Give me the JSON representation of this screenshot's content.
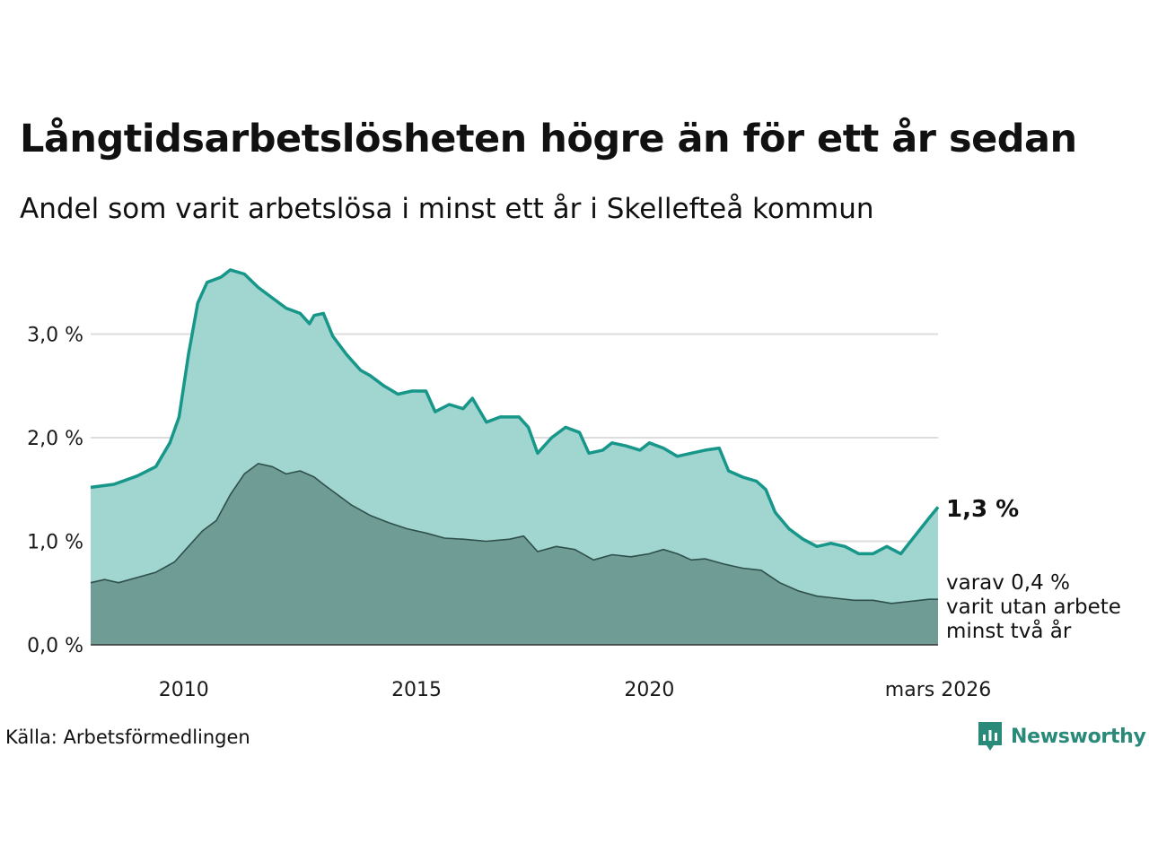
{
  "header": {
    "title": "Långtidsarbetslösheten högre än för ett år sedan",
    "subtitle": "Andel som varit arbetslösa i minst ett år i Skellefteå kommun"
  },
  "footer": {
    "source": "Källa: Arbetsförmedlingen",
    "brand": "Newsworthy"
  },
  "colors": {
    "total_line": "#17968a",
    "total_fill": "#a1d5cf",
    "long_fill": "#6f9d96",
    "long_line": "#2f4f4a",
    "grid": "#dddddd",
    "brand": "#2a8a79"
  },
  "chart_data": {
    "type": "area",
    "title": "Långtidsarbetslösheten högre än för ett år sedan",
    "subtitle": "Andel som varit arbetslösa i minst ett år i Skellefteå kommun",
    "ylim": [
      0,
      3.8
    ],
    "yticks": [
      0,
      1,
      2,
      3
    ],
    "ytick_labels": [
      "0,0 %",
      "1,0 %",
      "2,0 %",
      "3,0 %"
    ],
    "xlim": [
      2008.0,
      2026.2
    ],
    "xticks": [
      2010,
      2015,
      2020,
      2026.2
    ],
    "xtick_labels": [
      "2010",
      "2015",
      "2020",
      "mars 2026"
    ],
    "grid": true,
    "end_label_total": "1,3 %",
    "end_label_long": [
      "varav 0,4 %",
      "varit utan arbete",
      "minst två år"
    ],
    "series": [
      {
        "name": "Minst ett år",
        "points": [
          [
            2008.0,
            1.52
          ],
          [
            2008.5,
            1.55
          ],
          [
            2009.0,
            1.63
          ],
          [
            2009.4,
            1.72
          ],
          [
            2009.7,
            1.95
          ],
          [
            2009.9,
            2.2
          ],
          [
            2010.1,
            2.8
          ],
          [
            2010.3,
            3.3
          ],
          [
            2010.5,
            3.5
          ],
          [
            2010.8,
            3.55
          ],
          [
            2011.0,
            3.62
          ],
          [
            2011.3,
            3.58
          ],
          [
            2011.6,
            3.45
          ],
          [
            2011.9,
            3.35
          ],
          [
            2012.2,
            3.25
          ],
          [
            2012.5,
            3.2
          ],
          [
            2012.7,
            3.1
          ],
          [
            2012.8,
            3.18
          ],
          [
            2013.0,
            3.2
          ],
          [
            2013.2,
            2.98
          ],
          [
            2013.5,
            2.8
          ],
          [
            2013.8,
            2.65
          ],
          [
            2014.0,
            2.6
          ],
          [
            2014.3,
            2.5
          ],
          [
            2014.6,
            2.42
          ],
          [
            2014.9,
            2.45
          ],
          [
            2015.2,
            2.45
          ],
          [
            2015.4,
            2.25
          ],
          [
            2015.7,
            2.32
          ],
          [
            2016.0,
            2.28
          ],
          [
            2016.2,
            2.38
          ],
          [
            2016.5,
            2.15
          ],
          [
            2016.8,
            2.2
          ],
          [
            2017.2,
            2.2
          ],
          [
            2017.4,
            2.1
          ],
          [
            2017.6,
            1.85
          ],
          [
            2017.9,
            2.0
          ],
          [
            2018.2,
            2.1
          ],
          [
            2018.5,
            2.05
          ],
          [
            2018.7,
            1.85
          ],
          [
            2019.0,
            1.88
          ],
          [
            2019.2,
            1.95
          ],
          [
            2019.5,
            1.92
          ],
          [
            2019.8,
            1.88
          ],
          [
            2020.0,
            1.95
          ],
          [
            2020.3,
            1.9
          ],
          [
            2020.6,
            1.82
          ],
          [
            2020.9,
            1.85
          ],
          [
            2021.2,
            1.88
          ],
          [
            2021.5,
            1.9
          ],
          [
            2021.7,
            1.68
          ],
          [
            2022.0,
            1.62
          ],
          [
            2022.3,
            1.58
          ],
          [
            2022.5,
            1.5
          ],
          [
            2022.7,
            1.28
          ],
          [
            2023.0,
            1.12
          ],
          [
            2023.3,
            1.02
          ],
          [
            2023.6,
            0.95
          ],
          [
            2023.9,
            0.98
          ],
          [
            2024.2,
            0.95
          ],
          [
            2024.5,
            0.88
          ],
          [
            2024.8,
            0.88
          ],
          [
            2025.1,
            0.95
          ],
          [
            2025.4,
            0.88
          ],
          [
            2025.7,
            1.05
          ],
          [
            2026.0,
            1.22
          ],
          [
            2026.2,
            1.33
          ]
        ]
      },
      {
        "name": "Minst två år",
        "points": [
          [
            2008.0,
            0.6
          ],
          [
            2008.3,
            0.63
          ],
          [
            2008.6,
            0.6
          ],
          [
            2009.0,
            0.65
          ],
          [
            2009.4,
            0.7
          ],
          [
            2009.8,
            0.8
          ],
          [
            2010.1,
            0.95
          ],
          [
            2010.4,
            1.1
          ],
          [
            2010.7,
            1.2
          ],
          [
            2011.0,
            1.45
          ],
          [
            2011.3,
            1.65
          ],
          [
            2011.6,
            1.75
          ],
          [
            2011.9,
            1.72
          ],
          [
            2012.2,
            1.65
          ],
          [
            2012.5,
            1.68
          ],
          [
            2012.8,
            1.62
          ],
          [
            2013.0,
            1.55
          ],
          [
            2013.3,
            1.45
          ],
          [
            2013.6,
            1.35
          ],
          [
            2014.0,
            1.25
          ],
          [
            2014.4,
            1.18
          ],
          [
            2014.8,
            1.12
          ],
          [
            2015.2,
            1.08
          ],
          [
            2015.6,
            1.03
          ],
          [
            2016.0,
            1.02
          ],
          [
            2016.5,
            1.0
          ],
          [
            2017.0,
            1.02
          ],
          [
            2017.3,
            1.05
          ],
          [
            2017.6,
            0.9
          ],
          [
            2018.0,
            0.95
          ],
          [
            2018.4,
            0.92
          ],
          [
            2018.8,
            0.82
          ],
          [
            2019.2,
            0.87
          ],
          [
            2019.6,
            0.85
          ],
          [
            2020.0,
            0.88
          ],
          [
            2020.3,
            0.92
          ],
          [
            2020.6,
            0.88
          ],
          [
            2020.9,
            0.82
          ],
          [
            2021.2,
            0.83
          ],
          [
            2021.6,
            0.78
          ],
          [
            2022.0,
            0.74
          ],
          [
            2022.4,
            0.72
          ],
          [
            2022.8,
            0.6
          ],
          [
            2023.2,
            0.52
          ],
          [
            2023.6,
            0.47
          ],
          [
            2024.0,
            0.45
          ],
          [
            2024.4,
            0.43
          ],
          [
            2024.8,
            0.43
          ],
          [
            2025.2,
            0.4
          ],
          [
            2025.6,
            0.42
          ],
          [
            2026.0,
            0.44
          ],
          [
            2026.2,
            0.44
          ]
        ]
      }
    ]
  }
}
